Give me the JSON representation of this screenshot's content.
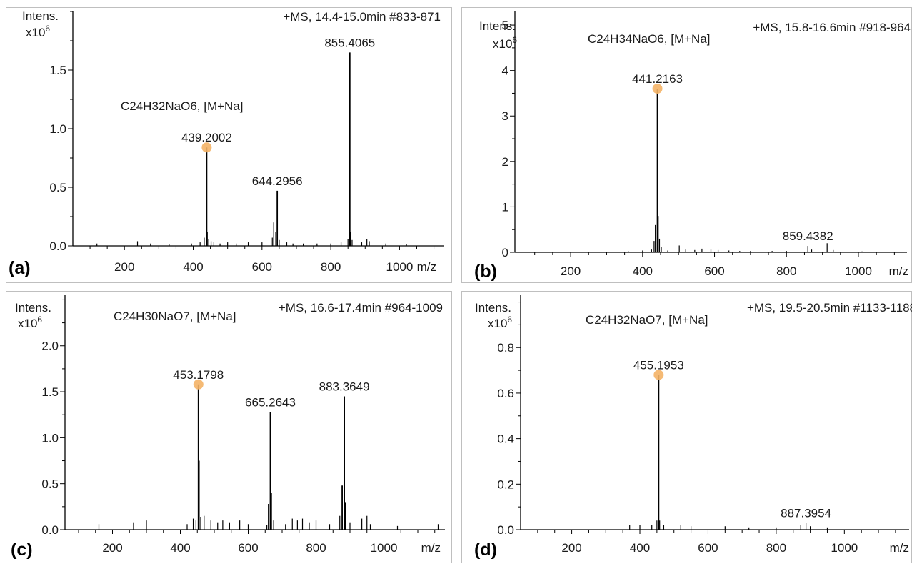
{
  "chart_data": [
    {
      "type": "mass-spectrum",
      "panel_label": "(a)",
      "ylabel": "Intens.",
      "yunit": "x10",
      "yexp": "6",
      "xlabel": "m/z",
      "header": "+MS, 14.4-15.0min #833-871",
      "formula": "C24H32NaO6, [M+Na]",
      "xlim": [
        50,
        1130
      ],
      "ylim": [
        0,
        2.0
      ],
      "xticks": [
        200,
        400,
        600,
        800,
        1000
      ],
      "yticks": [
        0.0,
        0.5,
        1.0,
        1.5
      ],
      "peaks": [
        [
          120,
          0.02
        ],
        [
          238,
          0.04
        ],
        [
          276,
          0.02
        ],
        [
          330,
          0.015
        ],
        [
          395,
          0.02
        ],
        [
          420,
          0.03
        ],
        [
          432,
          0.07
        ],
        [
          439.2002,
          0.84
        ],
        [
          441,
          0.12
        ],
        [
          445,
          0.06
        ],
        [
          452,
          0.04
        ],
        [
          460,
          0.03
        ],
        [
          478,
          0.02
        ],
        [
          500,
          0.03
        ],
        [
          525,
          0.02
        ],
        [
          560,
          0.03
        ],
        [
          600,
          0.03
        ],
        [
          630,
          0.07
        ],
        [
          634,
          0.2
        ],
        [
          640,
          0.12
        ],
        [
          644.2956,
          0.47
        ],
        [
          650,
          0.05
        ],
        [
          672,
          0.03
        ],
        [
          690,
          0.02
        ],
        [
          720,
          0.02
        ],
        [
          760,
          0.02
        ],
        [
          800,
          0.02
        ],
        [
          830,
          0.03
        ],
        [
          850,
          0.06
        ],
        [
          855.4065,
          1.65
        ],
        [
          858,
          0.12
        ],
        [
          862,
          0.05
        ],
        [
          890,
          0.03
        ],
        [
          905,
          0.06
        ],
        [
          912,
          0.04
        ],
        [
          960,
          0.02
        ],
        [
          1020,
          0.015
        ]
      ],
      "labels": [
        {
          "mz": 439.2002,
          "text": "439.2002",
          "marked": true
        },
        {
          "mz": 644.2956,
          "text": "644.2956",
          "marked": false
        },
        {
          "mz": 855.4065,
          "text": "855.4065",
          "marked": false
        }
      ]
    },
    {
      "type": "mass-spectrum",
      "panel_label": "(b)",
      "ylabel": "Intens.",
      "yunit": "x10",
      "yexp": "6",
      "xlabel": "m/z",
      "header": "+MS, 15.8-16.6min #918-964",
      "formula": "C24H34NaO6, [M+Na]",
      "xlim": [
        45,
        1135
      ],
      "ylim": [
        0,
        5.3
      ],
      "xticks": [
        200,
        400,
        600,
        800,
        1000
      ],
      "yticks": [
        0,
        1,
        2,
        3,
        4,
        5
      ],
      "peaks": [
        [
          360,
          0.03
        ],
        [
          400,
          0.04
        ],
        [
          425,
          0.06
        ],
        [
          432,
          0.25
        ],
        [
          436,
          0.6
        ],
        [
          441.2163,
          3.6
        ],
        [
          443,
          0.8
        ],
        [
          447,
          0.3
        ],
        [
          452,
          0.12
        ],
        [
          470,
          0.04
        ],
        [
          502,
          0.15
        ],
        [
          520,
          0.06
        ],
        [
          545,
          0.05
        ],
        [
          565,
          0.08
        ],
        [
          590,
          0.06
        ],
        [
          610,
          0.05
        ],
        [
          640,
          0.04
        ],
        [
          670,
          0.03
        ],
        [
          700,
          0.03
        ],
        [
          760,
          0.03
        ],
        [
          800,
          0.03
        ],
        [
          859.4382,
          0.14
        ],
        [
          870,
          0.06
        ],
        [
          913,
          0.2
        ],
        [
          930,
          0.05
        ],
        [
          1010,
          0.02
        ]
      ],
      "labels": [
        {
          "mz": 441.2163,
          "text": "441.2163",
          "marked": true
        },
        {
          "mz": 859.4382,
          "text": "859.4382",
          "marked": false
        }
      ]
    },
    {
      "type": "mass-spectrum",
      "panel_label": "(c)",
      "ylabel": "Intens.",
      "yunit": "x10",
      "yexp": "6",
      "xlabel": "m/z",
      "header": "+MS, 16.6-17.4min #964-1009",
      "formula": "C24H30NaO7, [M+Na]",
      "xlim": [
        60,
        1180
      ],
      "ylim": [
        0,
        2.55
      ],
      "xticks": [
        200,
        400,
        600,
        800,
        1000
      ],
      "yticks": [
        0.0,
        0.5,
        1.0,
        1.5,
        2.0
      ],
      "peaks": [
        [
          160,
          0.06
        ],
        [
          262,
          0.08
        ],
        [
          300,
          0.1
        ],
        [
          420,
          0.06
        ],
        [
          438,
          0.12
        ],
        [
          446,
          0.1
        ],
        [
          453.1798,
          1.58
        ],
        [
          455,
          0.75
        ],
        [
          460,
          0.14
        ],
        [
          470,
          0.15
        ],
        [
          490,
          0.1
        ],
        [
          510,
          0.08
        ],
        [
          525,
          0.1
        ],
        [
          545,
          0.08
        ],
        [
          575,
          0.1
        ],
        [
          600,
          0.06
        ],
        [
          655,
          0.05
        ],
        [
          660,
          0.28
        ],
        [
          665.2643,
          1.28
        ],
        [
          668,
          0.4
        ],
        [
          675,
          0.1
        ],
        [
          710,
          0.06
        ],
        [
          730,
          0.12
        ],
        [
          745,
          0.1
        ],
        [
          760,
          0.12
        ],
        [
          780,
          0.08
        ],
        [
          800,
          0.1
        ],
        [
          840,
          0.06
        ],
        [
          870,
          0.15
        ],
        [
          877,
          0.48
        ],
        [
          883.3649,
          1.45
        ],
        [
          887,
          0.3
        ],
        [
          900,
          0.08
        ],
        [
          935,
          0.12
        ],
        [
          950,
          0.15
        ],
        [
          960,
          0.06
        ],
        [
          1040,
          0.04
        ],
        [
          1160,
          0.06
        ]
      ],
      "labels": [
        {
          "mz": 453.1798,
          "text": "453.1798",
          "marked": true
        },
        {
          "mz": 665.2643,
          "text": "665.2643",
          "marked": false
        },
        {
          "mz": 883.3649,
          "text": "883.3649",
          "marked": false
        }
      ]
    },
    {
      "type": "mass-spectrum",
      "panel_label": "(d)",
      "ylabel": "Intens.",
      "yunit": "x10",
      "yexp": "6",
      "xlabel": "m/z",
      "header": "+MS, 19.5-20.5min #1133-1188",
      "formula": "C24H32NaO7, [M+Na]",
      "xlim": [
        50,
        1190
      ],
      "ylim": [
        0,
        1.03
      ],
      "xticks": [
        200,
        400,
        600,
        800,
        1000
      ],
      "yticks": [
        0.0,
        0.2,
        0.4,
        0.6,
        0.8
      ],
      "peaks": [
        [
          370,
          0.02
        ],
        [
          400,
          0.02
        ],
        [
          435,
          0.02
        ],
        [
          450,
          0.04
        ],
        [
          455.1953,
          0.68
        ],
        [
          458,
          0.04
        ],
        [
          470,
          0.02
        ],
        [
          520,
          0.02
        ],
        [
          550,
          0.015
        ],
        [
          650,
          0.015
        ],
        [
          720,
          0.01
        ],
        [
          800,
          0.01
        ],
        [
          872,
          0.02
        ],
        [
          887.3954,
          0.03
        ],
        [
          900,
          0.015
        ],
        [
          950,
          0.01
        ]
      ],
      "labels": [
        {
          "mz": 455.1953,
          "text": "455.1953",
          "marked": true
        },
        {
          "mz": 887.3954,
          "text": "887.3954",
          "marked": false
        }
      ]
    }
  ]
}
